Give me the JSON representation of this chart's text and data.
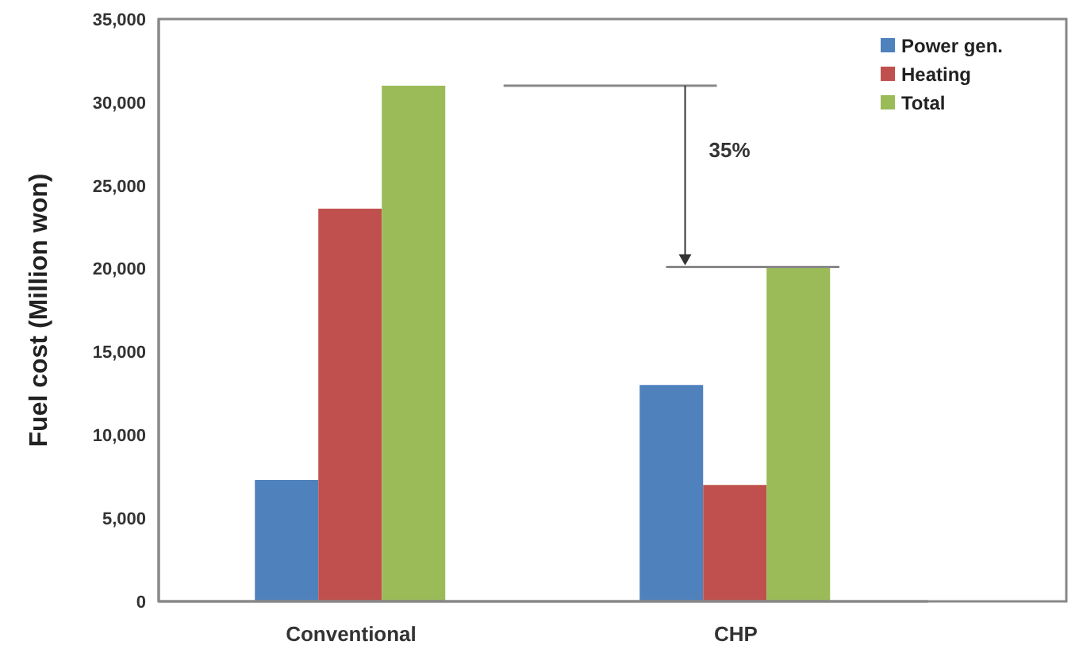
{
  "chart_data": {
    "type": "bar",
    "ylabel": "Fuel cost (Million won)",
    "categories": [
      "Conventional",
      "CHP"
    ],
    "series": [
      {
        "name": "Power gen.",
        "color": "#4f81bd",
        "values": [
          7300,
          13000
        ]
      },
      {
        "name": "Heating",
        "color": "#c0504d",
        "values": [
          23600,
          7000
        ]
      },
      {
        "name": "Total",
        "color": "#9bbb59",
        "values": [
          31000,
          20100
        ]
      }
    ],
    "ylim": [
      0,
      35000
    ],
    "yticks": [
      {
        "value": 0,
        "label": "0"
      },
      {
        "value": 5000,
        "label": "5,000"
      },
      {
        "value": 10000,
        "label": "10,000"
      },
      {
        "value": 15000,
        "label": "15,000"
      },
      {
        "value": 20000,
        "label": "20,000"
      },
      {
        "value": 25000,
        "label": "25,000"
      },
      {
        "value": 30000,
        "label": "30,000"
      },
      {
        "value": 35000,
        "label": "35,000"
      }
    ],
    "grid": false,
    "legend": "top right",
    "annotations": [
      "35%"
    ]
  }
}
